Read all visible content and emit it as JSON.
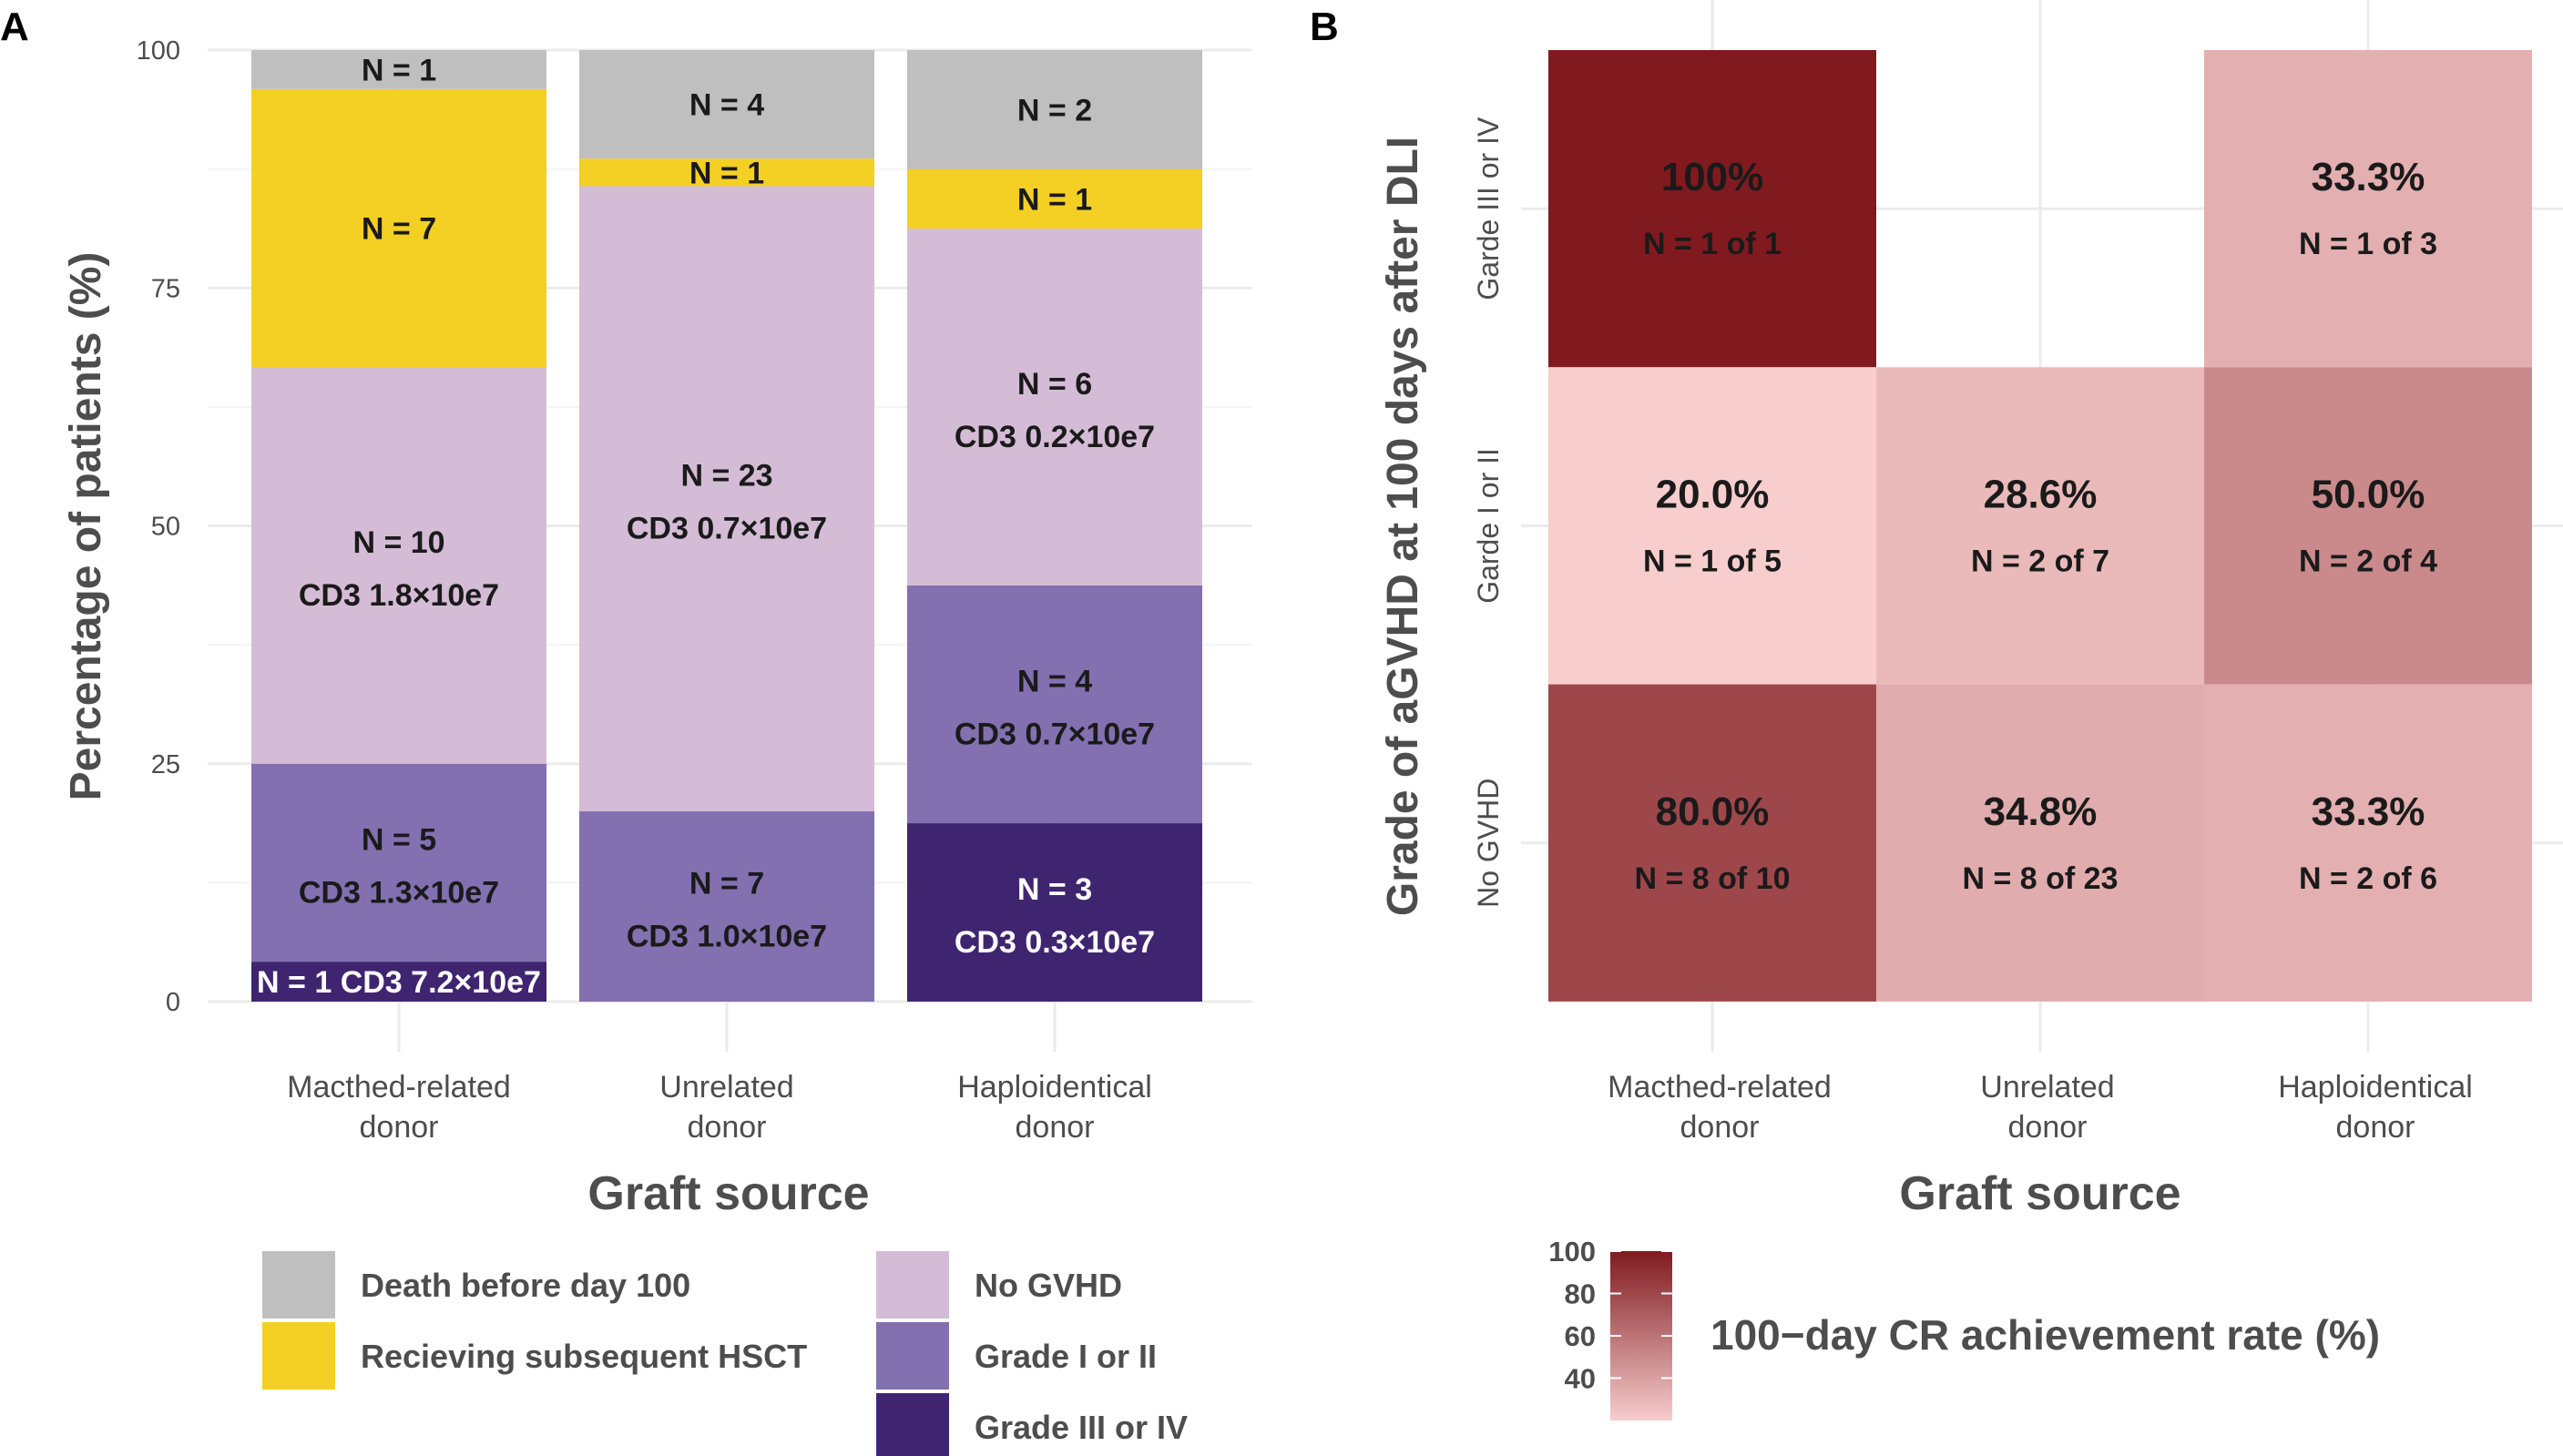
{
  "chart_data": [
    {
      "panel": "A",
      "type": "bar",
      "stacked": true,
      "title": "",
      "xlabel": "Graft source",
      "ylabel": "Percentage of patients (%)",
      "ylim": [
        0,
        100
      ],
      "yticks": [
        "0",
        "25",
        "50",
        "75",
        "100"
      ],
      "categories": [
        {
          "line1": "Macthed-related",
          "line2": "donor"
        },
        {
          "line1": "Unrelated",
          "line2": "donor"
        },
        {
          "line1": "Haploidentical",
          "line2": "donor"
        }
      ],
      "series_order_bottom_to_top": [
        "Grade III or IV",
        "Grade I or II",
        "No GVHD",
        "Recieving subsequent HSCT",
        "Death before day 100"
      ],
      "series_colors": {
        "Grade III or IV": "#3f2570",
        "Grade I or II": "#8270b1",
        "No GVHD": "#d4bcd6",
        "Recieving subsequent HSCT": "#f3d023",
        "Death before day 100": "#bfbfbf"
      },
      "bars": [
        {
          "category_index": 0,
          "segments": [
            {
              "series": "Grade III or IV",
              "n": 1,
              "percent": 4.2,
              "label": "N = 1   CD3 7.2×10e7"
            },
            {
              "series": "Grade I or II",
              "n": 5,
              "percent": 20.8,
              "label": "N = 5",
              "label2": "CD3 1.3×10e7"
            },
            {
              "series": "No GVHD",
              "n": 10,
              "percent": 41.7,
              "label": "N = 10",
              "label2": "CD3 1.8×10e7"
            },
            {
              "series": "Recieving subsequent HSCT",
              "n": 7,
              "percent": 29.2,
              "label": "N = 7"
            },
            {
              "series": "Death before day 100",
              "n": 1,
              "percent": 4.2,
              "label": "N = 1"
            }
          ]
        },
        {
          "category_index": 1,
          "segments": [
            {
              "series": "Grade I or II",
              "n": 7,
              "percent": 20.0,
              "label": "N = 7",
              "label2": "CD3 1.0×10e7"
            },
            {
              "series": "No GVHD",
              "n": 23,
              "percent": 65.7,
              "label": "N = 23",
              "label2": "CD3 0.7×10e7"
            },
            {
              "series": "Recieving subsequent HSCT",
              "n": 1,
              "percent": 2.9,
              "label": "N = 1"
            },
            {
              "series": "Death before day 100",
              "n": 4,
              "percent": 11.4,
              "label": "N = 4"
            }
          ]
        },
        {
          "category_index": 2,
          "segments": [
            {
              "series": "Grade III or IV",
              "n": 3,
              "percent": 18.75,
              "label": "N = 3",
              "label2": "CD3 0.3×10e7"
            },
            {
              "series": "Grade I or II",
              "n": 4,
              "percent": 25.0,
              "label": "N = 4",
              "label2": "CD3 0.7×10e7"
            },
            {
              "series": "No GVHD",
              "n": 6,
              "percent": 37.5,
              "label": "N = 6",
              "label2": "CD3 0.2×10e7"
            },
            {
              "series": "Recieving subsequent HSCT",
              "n": 1,
              "percent": 6.25,
              "label": "N = 1"
            },
            {
              "series": "Death before day 100",
              "n": 2,
              "percent": 12.5,
              "label": "N = 2"
            }
          ]
        }
      ],
      "legend": [
        {
          "label": "Death before day 100",
          "series": "Death before day 100"
        },
        {
          "label": "Recieving subsequent HSCT",
          "series": "Recieving subsequent HSCT"
        },
        {
          "label": "No GVHD",
          "series": "No GVHD"
        },
        {
          "label": "Grade I or II",
          "series": "Grade I or II"
        },
        {
          "label": "Grade III or IV",
          "series": "Grade III or IV"
        }
      ]
    },
    {
      "panel": "B",
      "type": "heatmap",
      "xlabel": "Graft source",
      "ylabel": "Grade of aGVHD at 100 days after DLI",
      "columns": [
        {
          "line1": "Macthed-related",
          "line2": "donor"
        },
        {
          "line1": "Unrelated",
          "line2": "donor"
        },
        {
          "line1": "Haploidentical",
          "line2": "donor"
        }
      ],
      "rows_top_to_bottom": [
        "Garde III or IV",
        "Garde I or II",
        "No GVHD"
      ],
      "cells": [
        {
          "row": 0,
          "col": 0,
          "value": 100,
          "pct_label": "100%",
          "n_label": "N = 1 of 1"
        },
        {
          "row": 0,
          "col": 2,
          "value": 33.3,
          "pct_label": "33.3%",
          "n_label": "N = 1 of 3"
        },
        {
          "row": 1,
          "col": 0,
          "value": 20.0,
          "pct_label": "20.0%",
          "n_label": "N = 1 of 5"
        },
        {
          "row": 1,
          "col": 1,
          "value": 28.6,
          "pct_label": "28.6%",
          "n_label": "N = 2 of 7"
        },
        {
          "row": 1,
          "col": 2,
          "value": 50.0,
          "pct_label": "50.0%",
          "n_label": "N = 2 of 4"
        },
        {
          "row": 2,
          "col": 0,
          "value": 80.0,
          "pct_label": "80.0%",
          "n_label": "N = 8 of 10"
        },
        {
          "row": 2,
          "col": 1,
          "value": 34.8,
          "pct_label": "34.8%",
          "n_label": "N = 8 of 23"
        },
        {
          "row": 2,
          "col": 2,
          "value": 33.3,
          "pct_label": "33.3%",
          "n_label": "N = 2 of 6"
        }
      ],
      "color_low": "#f7cdcd",
      "color_high": "#801a1f",
      "value_range": [
        20,
        100
      ],
      "colorbar": {
        "title": "100−day CR achievement rate (%)",
        "ticks": [
          40,
          60,
          80,
          100
        ],
        "range": [
          20,
          100
        ]
      }
    }
  ]
}
